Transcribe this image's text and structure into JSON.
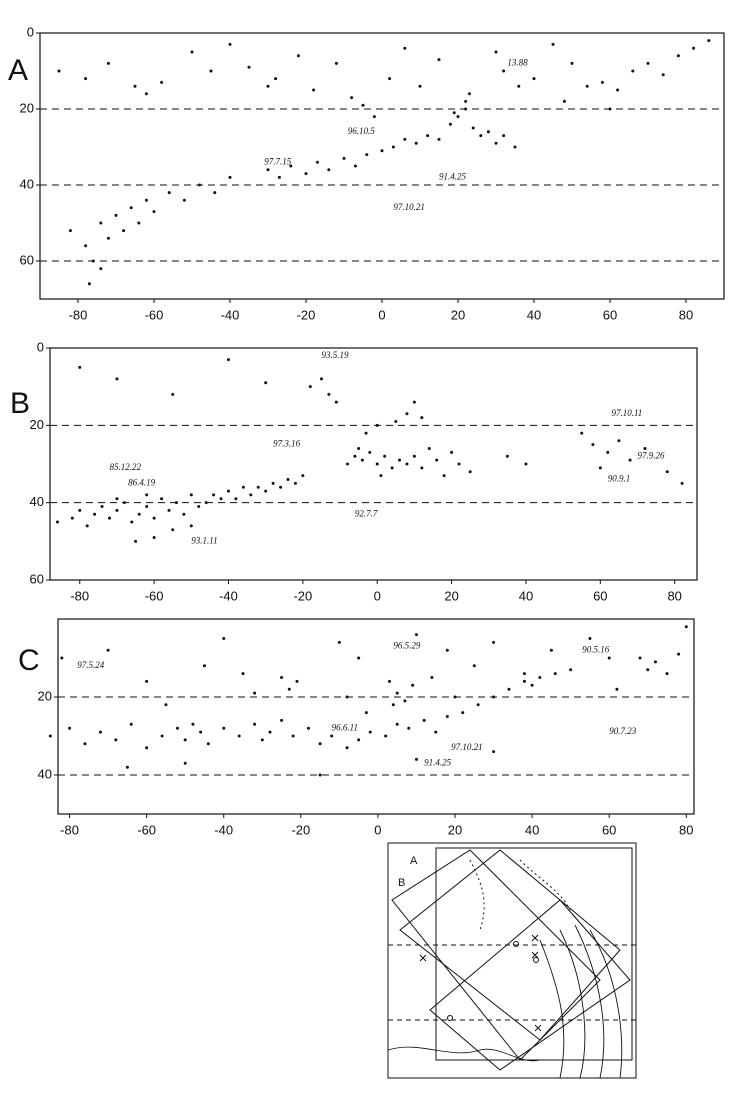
{
  "chart_data": [
    {
      "type": "scatter",
      "label": "A",
      "xlim": [
        -90,
        90
      ],
      "ylim": [
        0,
        70
      ],
      "xticks": [
        -80,
        -60,
        -40,
        -20,
        0,
        20,
        40,
        60,
        80
      ],
      "yticks": [
        0,
        20,
        40,
        60
      ],
      "dashed_lines": [
        20,
        40,
        60
      ],
      "points": [
        [
          -82,
          52
        ],
        [
          -78,
          56
        ],
        [
          -76,
          60
        ],
        [
          -74,
          50
        ],
        [
          -72,
          54
        ],
        [
          -70,
          48
        ],
        [
          -68,
          52
        ],
        [
          -66,
          46
        ],
        [
          -64,
          50
        ],
        [
          -62,
          44
        ],
        [
          -60,
          47
        ],
        [
          -56,
          42
        ],
        [
          -52,
          44
        ],
        [
          -48,
          40
        ],
        [
          -44,
          42
        ],
        [
          -40,
          38
        ],
        [
          -77,
          66
        ],
        [
          -74,
          62
        ],
        [
          -30,
          36
        ],
        [
          -27,
          38
        ],
        [
          -24,
          35
        ],
        [
          -20,
          37
        ],
        [
          -17,
          34
        ],
        [
          -14,
          36
        ],
        [
          -10,
          33
        ],
        [
          -7,
          35
        ],
        [
          -4,
          32
        ],
        [
          0,
          31
        ],
        [
          3,
          30
        ],
        [
          6,
          28
        ],
        [
          9,
          29
        ],
        [
          12,
          27
        ],
        [
          15,
          28
        ],
        [
          18,
          24
        ],
        [
          20,
          22
        ],
        [
          22,
          20
        ],
        [
          24,
          25
        ],
        [
          26,
          27
        ],
        [
          28,
          26
        ],
        [
          30,
          29
        ],
        [
          32,
          27
        ],
        [
          35,
          30
        ],
        [
          22,
          18
        ],
        [
          23,
          16
        ],
        [
          19,
          21
        ],
        [
          -85,
          10
        ],
        [
          -78,
          12
        ],
        [
          -72,
          8
        ],
        [
          -65,
          14
        ],
        [
          -62,
          16
        ],
        [
          -58,
          13
        ],
        [
          -50,
          5
        ],
        [
          -45,
          10
        ],
        [
          -40,
          3
        ],
        [
          -35,
          9
        ],
        [
          -30,
          14
        ],
        [
          -28,
          12
        ],
        [
          -22,
          6
        ],
        [
          -18,
          15
        ],
        [
          -12,
          8
        ],
        [
          -8,
          17
        ],
        [
          -5,
          19
        ],
        [
          -2,
          22
        ],
        [
          2,
          12
        ],
        [
          6,
          4
        ],
        [
          10,
          14
        ],
        [
          15,
          7
        ],
        [
          30,
          5
        ],
        [
          32,
          10
        ],
        [
          36,
          14
        ],
        [
          40,
          12
        ],
        [
          45,
          3
        ],
        [
          50,
          8
        ],
        [
          54,
          14
        ],
        [
          58,
          13
        ],
        [
          62,
          15
        ],
        [
          66,
          10
        ],
        [
          70,
          8
        ],
        [
          74,
          11
        ],
        [
          78,
          6
        ],
        [
          82,
          4
        ],
        [
          86,
          2
        ],
        [
          60,
          20
        ],
        [
          48,
          18
        ]
      ],
      "annotations": [
        {
          "text": "13.88",
          "x": 33,
          "y": 8
        },
        {
          "text": "96.10.5",
          "x": -9,
          "y": 26
        },
        {
          "text": "97.7.15",
          "x": -31,
          "y": 34
        },
        {
          "text": "91.4.25",
          "x": 15,
          "y": 38
        },
        {
          "text": "97.10.21",
          "x": 3,
          "y": 46
        }
      ]
    },
    {
      "type": "scatter",
      "label": "B",
      "xlim": [
        -88,
        86
      ],
      "ylim": [
        0,
        60
      ],
      "xticks": [
        -80,
        -60,
        -40,
        -20,
        0,
        20,
        40,
        60,
        80
      ],
      "yticks": [
        0,
        20,
        40,
        60
      ],
      "dashed_lines": [
        20,
        40
      ],
      "points": [
        [
          -86,
          45
        ],
        [
          -82,
          44
        ],
        [
          -80,
          42
        ],
        [
          -78,
          46
        ],
        [
          -76,
          43
        ],
        [
          -74,
          41
        ],
        [
          -72,
          44
        ],
        [
          -70,
          42
        ],
        [
          -68,
          40
        ],
        [
          -66,
          45
        ],
        [
          -64,
          43
        ],
        [
          -62,
          41
        ],
        [
          -60,
          44
        ],
        [
          -58,
          39
        ],
        [
          -56,
          42
        ],
        [
          -54,
          40
        ],
        [
          -52,
          43
        ],
        [
          -50,
          38
        ],
        [
          -48,
          41
        ],
        [
          -46,
          40
        ],
        [
          -44,
          38
        ],
        [
          -42,
          39
        ],
        [
          -40,
          37
        ],
        [
          -38,
          39
        ],
        [
          -36,
          36
        ],
        [
          -34,
          38
        ],
        [
          -32,
          36
        ],
        [
          -30,
          37
        ],
        [
          -28,
          35
        ],
        [
          -26,
          36
        ],
        [
          -24,
          34
        ],
        [
          -22,
          35
        ],
        [
          -20,
          33
        ],
        [
          -65,
          50
        ],
        [
          -60,
          49
        ],
        [
          -55,
          47
        ],
        [
          -50,
          46
        ],
        [
          -70,
          39
        ],
        [
          -62,
          38
        ],
        [
          -8,
          30
        ],
        [
          -6,
          28
        ],
        [
          -4,
          29
        ],
        [
          -2,
          27
        ],
        [
          0,
          30
        ],
        [
          2,
          28
        ],
        [
          4,
          31
        ],
        [
          -5,
          26
        ],
        [
          1,
          33
        ],
        [
          6,
          29
        ],
        [
          8,
          30
        ],
        [
          10,
          28
        ],
        [
          12,
          31
        ],
        [
          14,
          26
        ],
        [
          16,
          29
        ],
        [
          18,
          33
        ],
        [
          20,
          27
        ],
        [
          22,
          30
        ],
        [
          25,
          32
        ],
        [
          -18,
          10
        ],
        [
          -15,
          8
        ],
        [
          -13,
          12
        ],
        [
          -11,
          14
        ],
        [
          -3,
          22
        ],
        [
          0,
          20
        ],
        [
          5,
          19
        ],
        [
          8,
          17
        ],
        [
          10,
          14
        ],
        [
          12,
          18
        ],
        [
          -80,
          5
        ],
        [
          -70,
          8
        ],
        [
          -55,
          12
        ],
        [
          -40,
          3
        ],
        [
          -30,
          9
        ],
        [
          35,
          28
        ],
        [
          40,
          30
        ],
        [
          55,
          22
        ],
        [
          58,
          25
        ],
        [
          62,
          27
        ],
        [
          65,
          24
        ],
        [
          68,
          29
        ],
        [
          72,
          26
        ],
        [
          78,
          32
        ],
        [
          82,
          35
        ],
        [
          60,
          31
        ]
      ],
      "annotations": [
        {
          "text": "93.5.19",
          "x": -15,
          "y": 2
        },
        {
          "text": "97.3.16",
          "x": -28,
          "y": 25
        },
        {
          "text": "85.12.22",
          "x": -72,
          "y": 31
        },
        {
          "text": "86.4.19",
          "x": -67,
          "y": 35
        },
        {
          "text": "93.1.11",
          "x": -50,
          "y": 50
        },
        {
          "text": "92.7.7",
          "x": -6,
          "y": 43
        },
        {
          "text": "97.10.11",
          "x": 63,
          "y": 17
        },
        {
          "text": "97.9.26",
          "x": 70,
          "y": 28
        },
        {
          "text": "90.9.1",
          "x": 62,
          "y": 34
        }
      ]
    },
    {
      "type": "scatter",
      "label": "C",
      "xlim": [
        -83,
        82
      ],
      "ylim": [
        0,
        50
      ],
      "xticks": [
        -80,
        -60,
        -40,
        -20,
        0,
        20,
        40,
        60,
        80
      ],
      "yticks": [
        20,
        40
      ],
      "dashed_lines": [
        20,
        40
      ],
      "points": [
        [
          -85,
          30
        ],
        [
          -80,
          28
        ],
        [
          -76,
          32
        ],
        [
          -72,
          29
        ],
        [
          -68,
          31
        ],
        [
          -64,
          27
        ],
        [
          -60,
          33
        ],
        [
          -56,
          30
        ],
        [
          -52,
          28
        ],
        [
          -50,
          31
        ],
        [
          -48,
          27
        ],
        [
          -46,
          29
        ],
        [
          -44,
          32
        ],
        [
          -40,
          28
        ],
        [
          -36,
          30
        ],
        [
          -32,
          27
        ],
        [
          -30,
          31
        ],
        [
          -28,
          29
        ],
        [
          -25,
          26
        ],
        [
          -22,
          30
        ],
        [
          -18,
          28
        ],
        [
          -15,
          32
        ],
        [
          -12,
          30
        ],
        [
          -8,
          33
        ],
        [
          -5,
          31
        ],
        [
          -2,
          29
        ],
        [
          2,
          30
        ],
        [
          5,
          27
        ],
        [
          8,
          28
        ],
        [
          12,
          26
        ],
        [
          15,
          29
        ],
        [
          18,
          25
        ],
        [
          22,
          24
        ],
        [
          26,
          22
        ],
        [
          30,
          20
        ],
        [
          34,
          18
        ],
        [
          38,
          16
        ],
        [
          42,
          15
        ],
        [
          46,
          14
        ],
        [
          50,
          13
        ],
        [
          -25,
          15
        ],
        [
          -23,
          18
        ],
        [
          -21,
          16
        ],
        [
          -32,
          19
        ],
        [
          -35,
          14
        ],
        [
          3,
          16
        ],
        [
          5,
          19
        ],
        [
          7,
          21
        ],
        [
          9,
          17
        ],
        [
          4,
          22
        ],
        [
          -8,
          20
        ],
        [
          -3,
          24
        ],
        [
          14,
          15
        ],
        [
          20,
          20
        ],
        [
          38,
          14
        ],
        [
          40,
          17
        ],
        [
          68,
          10
        ],
        [
          70,
          13
        ],
        [
          72,
          11
        ],
        [
          75,
          14
        ],
        [
          78,
          9
        ],
        [
          -82,
          10
        ],
        [
          -70,
          8
        ],
        [
          -60,
          16
        ],
        [
          -55,
          22
        ],
        [
          -45,
          12
        ],
        [
          -40,
          5
        ],
        [
          -10,
          6
        ],
        [
          -5,
          10
        ],
        [
          10,
          4
        ],
        [
          18,
          8
        ],
        [
          25,
          12
        ],
        [
          30,
          6
        ],
        [
          45,
          8
        ],
        [
          55,
          5
        ],
        [
          60,
          10
        ],
        [
          62,
          18
        ],
        [
          80,
          2
        ],
        [
          -65,
          38
        ],
        [
          -50,
          37
        ],
        [
          -15,
          40
        ],
        [
          10,
          36
        ],
        [
          30,
          34
        ]
      ],
      "annotations": [
        {
          "text": "97.5.24",
          "x": -78,
          "y": 12
        },
        {
          "text": "96.5.29",
          "x": 4,
          "y": 7
        },
        {
          "text": "90.5.16",
          "x": 53,
          "y": 8
        },
        {
          "text": "96.6.11",
          "x": -12,
          "y": 28
        },
        {
          "text": "90.7.23",
          "x": 60,
          "y": 29
        },
        {
          "text": "97.10.21",
          "x": 19,
          "y": 33
        },
        {
          "text": "91.4.25",
          "x": 12,
          "y": 37
        }
      ]
    }
  ],
  "map": {
    "labels": [
      "A",
      "B"
    ]
  }
}
